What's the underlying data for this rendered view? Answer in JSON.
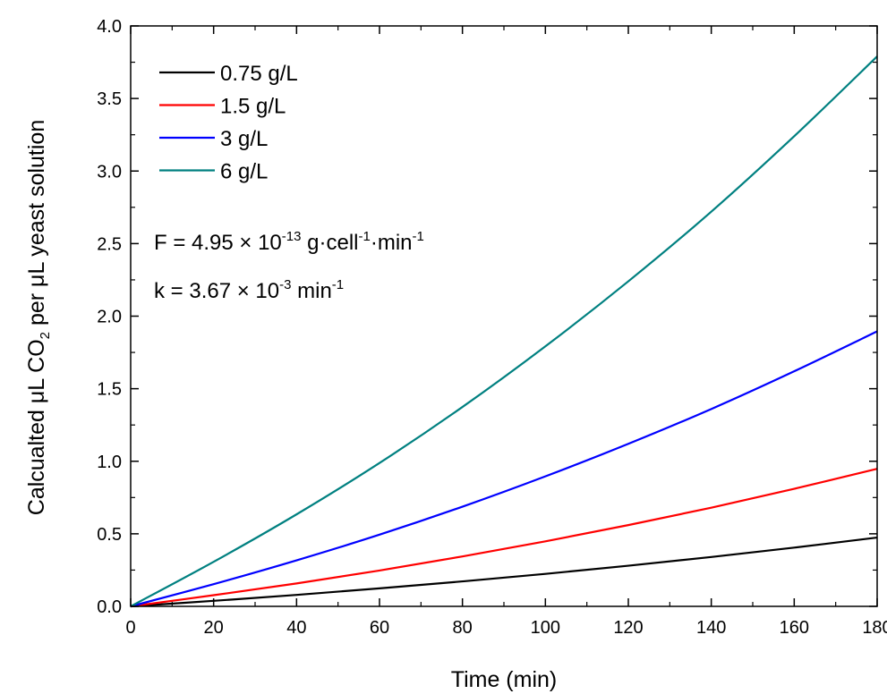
{
  "chart_data": {
    "type": "line",
    "title": "",
    "xlabel": "Time (min)",
    "ylabel": {
      "pre": "Calcualted μL CO",
      "sub": "2",
      "post": " per μL yeast solution"
    },
    "xlim": [
      0,
      180
    ],
    "ylim": [
      0,
      4.0
    ],
    "x_ticks": [
      0,
      20,
      40,
      60,
      80,
      100,
      120,
      140,
      160,
      180
    ],
    "y_ticks": [
      0.0,
      0.5,
      1.0,
      1.5,
      2.0,
      2.5,
      3.0,
      3.5,
      4.0
    ],
    "x_tick_labels": [
      "0",
      "20",
      "40",
      "60",
      "80",
      "100",
      "120",
      "140",
      "160",
      "180"
    ],
    "y_tick_labels": [
      "0.0",
      "0.5",
      "1.0",
      "1.5",
      "2.0",
      "2.5",
      "3.0",
      "3.5",
      "4.0"
    ],
    "grid": false,
    "legend_position": "top-left",
    "x": [
      0,
      20,
      40,
      60,
      80,
      100,
      120,
      140,
      160,
      180
    ],
    "series": [
      {
        "name": "0.75 g/L",
        "color": "#000000",
        "values": [
          0,
          0.038,
          0.079,
          0.124,
          0.172,
          0.224,
          0.28,
          0.34,
          0.405,
          0.474
        ]
      },
      {
        "name": "1.5 g/L",
        "color": "#ff0000",
        "values": [
          0,
          0.077,
          0.158,
          0.247,
          0.344,
          0.448,
          0.56,
          0.68,
          0.81,
          0.948
        ]
      },
      {
        "name": "3 g/L",
        "color": "#0000ff",
        "values": [
          0,
          0.153,
          0.317,
          0.494,
          0.687,
          0.896,
          1.12,
          1.36,
          1.62,
          1.895
        ]
      },
      {
        "name": "6 g/L",
        "color": "#008080",
        "values": [
          0,
          0.307,
          0.634,
          0.988,
          1.374,
          1.792,
          2.24,
          2.72,
          3.24,
          3.79
        ]
      }
    ],
    "annotations": [
      {
        "parts": [
          {
            "t": "F = 4.95 × 10"
          },
          {
            "t": "-13",
            "sup": true
          },
          {
            "t": " g·cell"
          },
          {
            "t": "-1",
            "sup": true
          },
          {
            "t": "·min"
          },
          {
            "t": "-1",
            "sup": true
          }
        ]
      },
      {
        "parts": [
          {
            "t": "k =  3.67 × 10"
          },
          {
            "t": "-3",
            "sup": true
          },
          {
            "t": " min"
          },
          {
            "t": "-1",
            "sup": true
          }
        ]
      }
    ]
  }
}
